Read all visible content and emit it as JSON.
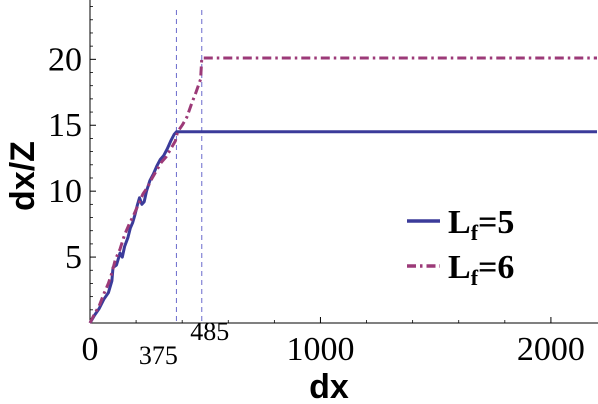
{
  "chart_data": {
    "type": "line",
    "title": "",
    "xlabel": "dx",
    "ylabel": "dx/Z",
    "xlim": [
      0,
      2200
    ],
    "ylim": [
      0,
      24.5
    ],
    "x_ticks": [
      0,
      1000,
      2000
    ],
    "y_ticks": [
      5,
      10,
      15,
      20
    ],
    "annotated_x_ticks": [
      375,
      485
    ],
    "vlines": [
      375,
      485
    ],
    "grid": false,
    "legend_position": "center-right",
    "legend": [
      {
        "main": "L",
        "sub": "f",
        "suffix": "=5"
      },
      {
        "main": "L",
        "sub": "f",
        "suffix": "=6"
      }
    ],
    "series": [
      {
        "legend_index": 0,
        "color": "#3b3b9a",
        "style": "solid",
        "x": [
          0,
          20,
          40,
          60,
          80,
          95,
          100,
          115,
          130,
          140,
          150,
          165,
          175,
          185,
          195,
          205,
          215,
          225,
          235,
          245,
          260,
          275,
          290,
          305,
          320,
          335,
          350,
          365,
          375,
          2200
        ],
        "y": [
          0,
          0.6,
          1.1,
          1.8,
          2.3,
          3.2,
          4.2,
          4.4,
          5.3,
          5.0,
          5.8,
          6.5,
          7.2,
          7.6,
          8.2,
          8.9,
          9.5,
          9.0,
          9.2,
          10.0,
          10.8,
          11.3,
          11.9,
          12.4,
          12.7,
          13.2,
          13.8,
          14.3,
          14.5,
          14.5
        ]
      },
      {
        "legend_index": 1,
        "color": "#9c3a78",
        "style": "dash-dot",
        "x": [
          0,
          20,
          40,
          60,
          80,
          95,
          110,
          130,
          150,
          170,
          190,
          210,
          230,
          250,
          270,
          290,
          310,
          330,
          350,
          370,
          380,
          400,
          420,
          440,
          460,
          480,
          485,
          2200
        ],
        "y": [
          0,
          0.7,
          1.3,
          2.2,
          3.0,
          3.8,
          4.8,
          5.6,
          6.7,
          7.5,
          8.2,
          9.0,
          9.8,
          10.3,
          11.0,
          11.6,
          12.2,
          12.6,
          13.2,
          13.8,
          14.5,
          15.0,
          15.6,
          16.6,
          17.5,
          18.5,
          20.1,
          20.1
        ]
      }
    ]
  }
}
